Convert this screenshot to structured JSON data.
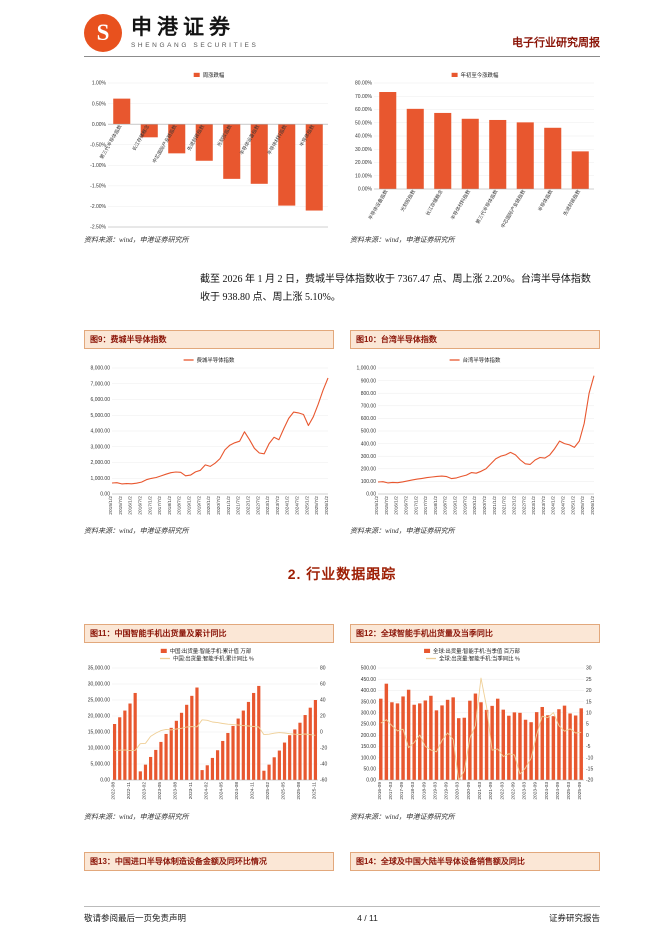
{
  "header": {
    "brand": "申港证券",
    "brand_sub": "SHENGANG SECURITIES",
    "report_type": "电子行业研究周报"
  },
  "body_text": "截至 2026 年 1 月 2 日，费城半导体指数收于 7367.47 点、周上涨 2.20%。台湾半导体指数收于 938.80 点、周上涨 5.10%。",
  "section_heading": "2. 行业数据跟踪",
  "source_note": "资料来源：wind，申港证券研究所",
  "figures": {
    "fig9_title": "图9：费城半导体指数",
    "fig10_title": "图10：台湾半导体指数",
    "fig11_title": "图11：中国智能手机出货量及累计同比",
    "fig12_title": "图12：全球智能手机出货量及当季同比",
    "fig13_title": "图13：中国进口半导体制造设备金额及同环比情况",
    "fig14_title": "图14：全球及中国大陆半导体设备销售额及同比"
  },
  "footer": {
    "left": "敬请参阅最后一页免责声明",
    "page": "4 / 11",
    "right": "证券研究报告"
  },
  "colors": {
    "accent": "#E8511E",
    "bar": "#E8572F",
    "line": "#E8572F",
    "combo_line": "#EFCF96",
    "title_red": "#8B1508"
  },
  "chart_data": [
    {
      "id": "weekly_change",
      "type": "bar",
      "legend": [
        {
          "label": "周涨跌幅",
          "swatch": "bar",
          "color": "#E8572F"
        }
      ],
      "categories": [
        "第三代半导体指数",
        "长江存储概念",
        "中芯国际产业链指数",
        "先进封装指数",
        "光刻胶指数",
        "半导体设备指数",
        "半导体材料指数",
        "半导体指数"
      ],
      "series": [
        {
          "name": "周涨跌幅",
          "type": "bar",
          "axis": "left",
          "color": "#E8572F",
          "values": [
            0.62,
            -0.32,
            -0.71,
            -0.89,
            -1.33,
            -1.45,
            -1.98,
            -2.1
          ]
        }
      ],
      "left_axis": {
        "min": -2.5,
        "max": 1.0,
        "step": 0.5,
        "format": "pct"
      },
      "x_tick_every": 1,
      "labels_at_zero": true,
      "label_rotate": -60
    },
    {
      "id": "ytd_change",
      "type": "bar",
      "legend": [
        {
          "label": "年初至今涨跌幅",
          "swatch": "bar",
          "color": "#E8572F"
        }
      ],
      "categories": [
        "半导体设备指数",
        "光刻胶指数",
        "长江存储概念",
        "半导体材料指数",
        "第三代半导体指数",
        "中芯国际产业链指数",
        "半导体指数",
        "先进封装指数"
      ],
      "series": [
        {
          "name": "年初至今涨跌幅",
          "type": "bar",
          "axis": "left",
          "color": "#E8572F",
          "values": [
            73.2,
            60.5,
            57.4,
            53.0,
            52.1,
            50.3,
            46.2,
            28.4
          ]
        }
      ],
      "left_axis": {
        "min": 0,
        "max": 80,
        "step": 10,
        "format": "pct"
      },
      "x_tick_every": 1,
      "label_rotate": -60
    },
    {
      "id": "sox_index",
      "type": "line",
      "legend": [
        {
          "label": "费城半导体指数",
          "swatch": "line",
          "color": "#E8572F"
        }
      ],
      "x_labels": [
        "2015/1/2",
        "2015/7/2",
        "2016/1/2",
        "2016/7/2",
        "2017/1/2",
        "2017/7/2",
        "2018/1/2",
        "2018/7/2",
        "2019/1/2",
        "2019/7/2",
        "2020/1/2",
        "2020/7/2",
        "2021/1/2",
        "2021/7/2",
        "2022/1/2",
        "2022/7/2",
        "2023/1/2",
        "2023/7/2",
        "2024/1/2",
        "2024/7/2",
        "2025/1/2",
        "2025/7/2",
        "2026/1/2"
      ],
      "x_tick_start": 0,
      "x_tick_step": 2,
      "series": [
        {
          "name": "费城半导体指数",
          "type": "line",
          "axis": "left",
          "color": "#E8572F",
          "values": [
            700,
            715,
            640,
            660,
            645,
            685,
            755,
            910,
            990,
            1050,
            1150,
            1255,
            1350,
            1400,
            1380,
            1155,
            1200,
            1405,
            1505,
            1850,
            1750,
            1955,
            2250,
            2800,
            3100,
            3250,
            3350,
            3950,
            3450,
            2900,
            2600,
            2550,
            3200,
            3600,
            3450,
            4150,
            4800,
            5200,
            5150,
            5050,
            4350,
            4900,
            5700,
            6600,
            7367
          ]
        }
      ],
      "left_axis": {
        "min": 0,
        "max": 8000,
        "step": 1000,
        "format": "num2"
      },
      "close_note": "7367.47"
    },
    {
      "id": "taiwan_index",
      "type": "line",
      "legend": [
        {
          "label": "台湾半导体指数",
          "swatch": "line",
          "color": "#E8572F"
        }
      ],
      "x_labels": [
        "2015/1/2",
        "2015/7/2",
        "2016/1/2",
        "2016/7/2",
        "2017/1/2",
        "2017/7/2",
        "2018/1/2",
        "2018/7/2",
        "2019/1/2",
        "2019/7/2",
        "2020/1/2",
        "2020/7/2",
        "2021/1/2",
        "2021/7/2",
        "2022/1/2",
        "2022/7/2",
        "2023/1/2",
        "2023/7/2",
        "2024/1/2",
        "2024/7/2",
        "2025/1/2",
        "2025/7/2",
        "2026/1/2"
      ],
      "x_tick_start": 0,
      "x_tick_step": 2,
      "series": [
        {
          "name": "台湾半导体指数",
          "type": "line",
          "axis": "left",
          "color": "#E8572F",
          "values": [
            95,
            98,
            88,
            92,
            90,
            96,
            104,
            112,
            118,
            124,
            130,
            135,
            140,
            142,
            138,
            122,
            128,
            140,
            150,
            170,
            165,
            180,
            200,
            240,
            280,
            300,
            310,
            330,
            310,
            270,
            240,
            235,
            270,
            290,
            285,
            310,
            360,
            420,
            400,
            390,
            370,
            420,
            560,
            800,
            939
          ]
        }
      ],
      "left_axis": {
        "min": 0,
        "max": 1000,
        "step": 100,
        "format": "num2"
      },
      "close_note": "938.80"
    },
    {
      "id": "china_smartphone",
      "type": "combo",
      "legend": [
        {
          "label": "中国:出货量:智能手机:累计值 万部",
          "swatch": "bar",
          "color": "#E8572F"
        },
        {
          "label": "中国:出货量:智能手机:累计同比 %",
          "swatch": "line",
          "color": "#EFCF96"
        }
      ],
      "categories": [
        "2022-08",
        "2022-09",
        "2022-10",
        "2022-11",
        "2022-12",
        "2023-01",
        "2023-02",
        "2023-03",
        "2023-04",
        "2023-05",
        "2023-06",
        "2023-07",
        "2023-08",
        "2023-09",
        "2023-10",
        "2023-11",
        "2023-12",
        "2024-01",
        "2024-02",
        "2024-03",
        "2024-04",
        "2024-05",
        "2024-06",
        "2024-07",
        "2024-08",
        "2024-09",
        "2024-10",
        "2024-11",
        "2024-12",
        "2025-01",
        "2025-02",
        "2025-03",
        "2025-04",
        "2025-05",
        "2025-06",
        "2025-07",
        "2025-08",
        "2025-09",
        "2025-10",
        "2025-11"
      ],
      "x_tick_every": 3,
      "series": [
        {
          "name": "中国:出货量:智能手机:累计值 万部",
          "type": "bar",
          "axis": "left",
          "color": "#E8572F",
          "values": [
            17500,
            19600,
            21700,
            23900,
            27200,
            2700,
            4800,
            7200,
            9400,
            11900,
            14400,
            16300,
            18500,
            21000,
            23500,
            26300,
            28900,
            3100,
            4600,
            6900,
            9300,
            12200,
            14700,
            16900,
            19200,
            21700,
            24400,
            27200,
            29400,
            2900,
            4800,
            7100,
            9200,
            11700,
            14000,
            15800,
            17900,
            20300,
            22600,
            25000
          ]
        },
        {
          "name": "中国:出货量:智能手机:累计同比 %",
          "type": "line",
          "axis": "right",
          "color": "#EFCF96",
          "values": [
            -22.9,
            -22.7,
            -22.4,
            -23.2,
            -22.9,
            -14.6,
            -14.1,
            -5.5,
            -1.4,
            1.7,
            3.3,
            2.6,
            3.7,
            4.6,
            6.2,
            6.8,
            6.5,
            15.2,
            14.6,
            12.5,
            11.8,
            10.6,
            9.8,
            9.2,
            8.6,
            8.0,
            7.5,
            6.9,
            6.2,
            -3.2,
            -2.8,
            -1.5,
            -0.8,
            -1.2,
            -2.1,
            -2.8,
            -3.1,
            -2.5,
            -3.4,
            -4.1
          ]
        }
      ],
      "left_axis": {
        "min": 0,
        "max": 35000,
        "step": 5000,
        "format": "num2"
      },
      "right_axis": {
        "min": -60,
        "max": 80,
        "step": 20,
        "format": "int"
      }
    },
    {
      "id": "global_smartphone",
      "type": "combo",
      "legend": [
        {
          "label": "全球:出货量:智能手机:当季值 百万部",
          "swatch": "bar",
          "color": "#E8572F"
        },
        {
          "label": "全球:出货量:智能手机:当季同比 %",
          "swatch": "line",
          "color": "#EFCF96"
        }
      ],
      "categories": [
        "2016-09",
        "2016-12",
        "2017-03",
        "2017-06",
        "2017-09",
        "2017-12",
        "2018-03",
        "2018-06",
        "2018-09",
        "2018-12",
        "2019-03",
        "2019-06",
        "2019-09",
        "2019-12",
        "2020-03",
        "2020-06",
        "2020-09",
        "2020-12",
        "2021-03",
        "2021-06",
        "2021-09",
        "2021-12",
        "2022-03",
        "2022-06",
        "2022-09",
        "2022-12",
        "2023-03",
        "2023-06",
        "2023-09",
        "2023-12",
        "2024-03",
        "2024-06",
        "2024-09",
        "2024-12",
        "2025-03",
        "2025-06",
        "2025-09"
      ],
      "x_tick_every": 2,
      "series": [
        {
          "name": "全球:出货量:智能手机:当季值 百万部",
          "type": "bar",
          "axis": "left",
          "color": "#E8572F",
          "values": [
            363,
            430,
            347,
            342,
            373,
            403,
            336,
            342,
            355,
            376,
            311,
            333,
            358,
            369,
            276,
            278,
            354,
            386,
            347,
            313,
            331,
            363,
            314,
            287,
            302,
            300,
            269,
            258,
            303,
            326,
            289,
            285,
            316,
            332,
            297,
            288,
            320
          ]
        },
        {
          "name": "全球:出货量:智能手机:当季同比 %",
          "type": "line",
          "axis": "right",
          "color": "#EFCF96",
          "values": [
            5.4,
            6.9,
            4.3,
            1.9,
            2.7,
            -5.6,
            -3.2,
            0.1,
            -5.0,
            -6.6,
            -7.4,
            -2.3,
            1.0,
            -1.9,
            -20.2,
            -16.0,
            -1.3,
            4.3,
            25.5,
            12.6,
            -6.7,
            -6.1,
            -9.5,
            -8.3,
            -8.8,
            -17.3,
            -14.6,
            -10.3,
            0.3,
            8.5,
            7.8,
            10.1,
            4.3,
            1.8,
            2.8,
            1.0,
            1.3
          ]
        }
      ],
      "left_axis": {
        "min": 0,
        "max": 500,
        "step": 50,
        "format": "num2"
      },
      "right_axis": {
        "min": -20,
        "max": 30,
        "step": 5,
        "format": "int"
      }
    }
  ]
}
